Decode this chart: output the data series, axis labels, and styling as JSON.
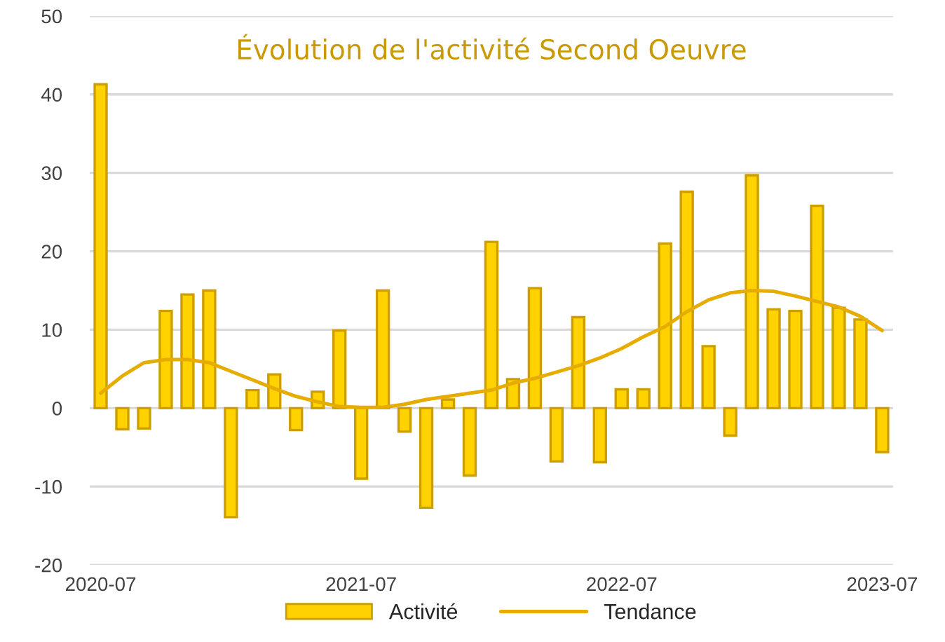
{
  "chart_data": {
    "type": "bar",
    "title": "Évolution de l'activité Second Oeuvre",
    "categories": [
      "2020-07",
      null,
      null,
      null,
      null,
      null,
      null,
      null,
      null,
      null,
      null,
      null,
      "2021-07",
      null,
      null,
      null,
      null,
      null,
      null,
      null,
      null,
      null,
      null,
      null,
      "2022-07",
      null,
      null,
      null,
      null,
      null,
      null,
      null,
      null,
      null,
      null,
      null,
      "2023-07"
    ],
    "series": [
      {
        "name": "Activité",
        "color": "#ffd200",
        "values": [
          41.3,
          -2.7,
          -2.6,
          12.4,
          14.5,
          15.0,
          -13.9,
          2.3,
          4.3,
          -2.8,
          2.1,
          9.9,
          -9.0,
          15.0,
          -3.0,
          -12.7,
          1.1,
          -8.6,
          21.2,
          3.7,
          15.3,
          -6.8,
          11.6,
          -6.9,
          2.4,
          2.4,
          21.0,
          27.6,
          7.9,
          -3.5,
          29.7,
          12.6,
          12.4,
          25.8,
          12.8,
          11.3,
          -5.6
        ]
      },
      {
        "name": "Tendance",
        "type": "line",
        "color": "#e6ac00",
        "values": [
          1.9,
          4.1,
          5.8,
          6.2,
          6.2,
          5.8,
          4.7,
          3.6,
          2.5,
          1.5,
          0.8,
          0.2,
          0.1,
          0.1,
          0.5,
          1.1,
          1.5,
          1.9,
          2.3,
          3.2,
          3.8,
          4.6,
          5.4,
          6.4,
          7.6,
          9.1,
          10.4,
          12.3,
          13.8,
          14.7,
          15.0,
          14.9,
          14.3,
          13.6,
          12.9,
          11.7,
          9.9
        ]
      }
    ],
    "ylim": [
      -20,
      50
    ],
    "yticks": [
      -20,
      -10,
      0,
      10,
      20,
      30,
      40,
      50
    ],
    "grid": "y",
    "legend": "bottom"
  }
}
